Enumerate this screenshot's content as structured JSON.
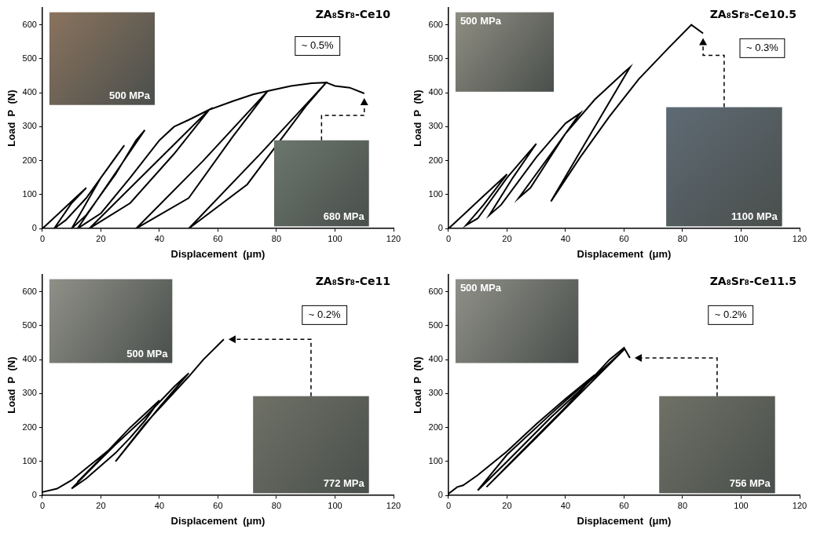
{
  "chart_data": [
    {
      "type": "line",
      "title": "ZA₈Sr₈-Ce10",
      "annotation": "~ 0.5%",
      "xlabel": "Displacement  (μm)",
      "ylabel": "Load  P  (N)",
      "insets": [
        {
          "label": "500 MPa"
        },
        {
          "label": "680 MPa"
        }
      ],
      "x": [
        0,
        5,
        10,
        15,
        10,
        4,
        8,
        15,
        20,
        25,
        28,
        20,
        10,
        15,
        25,
        32,
        35,
        25,
        12,
        20,
        30,
        40,
        45,
        50,
        57,
        40,
        16,
        30,
        45,
        57,
        65,
        72,
        77,
        55,
        32,
        50,
        65,
        77,
        85,
        92,
        97,
        75,
        50,
        70,
        90,
        97,
        100,
        105,
        110
      ],
      "values": [
        0,
        40,
        80,
        120,
        75,
        0,
        25,
        90,
        150,
        210,
        245,
        150,
        0,
        40,
        160,
        260,
        290,
        164,
        0,
        45,
        150,
        260,
        300,
        320,
        350,
        205,
        0,
        75,
        220,
        350,
        375,
        395,
        405,
        200,
        0,
        90,
        270,
        405,
        420,
        428,
        430,
        225,
        0,
        130,
        360,
        430,
        420,
        415,
        398
      ],
      "color": "#000000",
      "xlim": [
        0,
        120
      ],
      "xticks": [
        0,
        20,
        40,
        60,
        80,
        100,
        120
      ],
      "ylim": [
        0,
        650
      ],
      "yticks": [
        0,
        100,
        200,
        300,
        400,
        500,
        600
      ],
      "grid": false
    },
    {
      "type": "line",
      "title": "ZA₈Sr₈-Ce10.5",
      "annotation": "~ 0.3%",
      "xlabel": "Displacement  (μm)",
      "ylabel": "Load  P  (N)",
      "insets": [
        {
          "label": "500 MPa"
        },
        {
          "label": "1100 MPa"
        }
      ],
      "x": [
        0,
        5,
        10,
        15,
        20,
        12,
        6,
        10,
        20,
        25,
        30,
        22,
        14,
        18,
        30,
        35,
        40,
        45,
        35,
        24,
        28,
        40,
        50,
        60,
        62,
        50,
        35,
        45,
        55,
        65,
        75,
        83,
        87
      ],
      "values": [
        0,
        40,
        80,
        120,
        160,
        70,
        10,
        30,
        150,
        200,
        250,
        150,
        40,
        70,
        210,
        260,
        310,
        340,
        220,
        90,
        120,
        280,
        380,
        460,
        475,
        300,
        80,
        210,
        330,
        440,
        530,
        600,
        575
      ],
      "color": "#000000",
      "xlim": [
        0,
        120
      ],
      "xticks": [
        0,
        20,
        40,
        60,
        80,
        100,
        120
      ],
      "ylim": [
        0,
        650
      ],
      "yticks": [
        0,
        100,
        200,
        300,
        400,
        500,
        600
      ],
      "grid": false
    },
    {
      "type": "line",
      "title": "ZA₈Sr₈-Ce11",
      "annotation": "~ 0.2%",
      "xlabel": "Displacement  (μm)",
      "ylabel": "Load  P  (N)",
      "insets": [
        {
          "label": "500 MPa"
        },
        {
          "label": "772 MPa"
        }
      ],
      "x": [
        0,
        5,
        10,
        15,
        20,
        25,
        18,
        10,
        15,
        25,
        30,
        35,
        40,
        30,
        20,
        12,
        20,
        35,
        45,
        50,
        40,
        25,
        35,
        50,
        55,
        62
      ],
      "values": [
        10,
        20,
        45,
        80,
        115,
        150,
        90,
        20,
        50,
        125,
        170,
        220,
        280,
        200,
        110,
        40,
        110,
        230,
        320,
        360,
        260,
        100,
        210,
        350,
        400,
        460
      ],
      "color": "#000000",
      "xlim": [
        0,
        120
      ],
      "xticks": [
        0,
        20,
        40,
        60,
        80,
        100,
        120
      ],
      "ylim": [
        0,
        650
      ],
      "yticks": [
        0,
        100,
        200,
        300,
        400,
        500,
        600
      ],
      "grid": false
    },
    {
      "type": "line",
      "title": "ZA₈Sr₈-Ce11.5",
      "annotation": "~ 0.2%",
      "xlabel": "Displacement  (μm)",
      "ylabel": "Load  P  (N)",
      "insets": [
        {
          "label": "500 MPa"
        },
        {
          "label": "756 MPa"
        }
      ],
      "x": [
        0,
        3,
        5,
        10,
        20,
        30,
        40,
        50,
        35,
        20,
        10,
        20,
        35,
        50,
        60,
        45,
        30,
        13,
        25,
        40,
        55,
        60,
        62
      ],
      "values": [
        5,
        25,
        30,
        60,
        130,
        210,
        285,
        355,
        240,
        120,
        15,
        100,
        230,
        350,
        430,
        300,
        170,
        25,
        130,
        260,
        400,
        435,
        405
      ],
      "color": "#000000",
      "xlim": [
        0,
        120
      ],
      "xticks": [
        0,
        20,
        40,
        60,
        80,
        100,
        120
      ],
      "ylim": [
        0,
        650
      ],
      "yticks": [
        0,
        100,
        200,
        300,
        400,
        500,
        600
      ],
      "grid": false
    }
  ]
}
